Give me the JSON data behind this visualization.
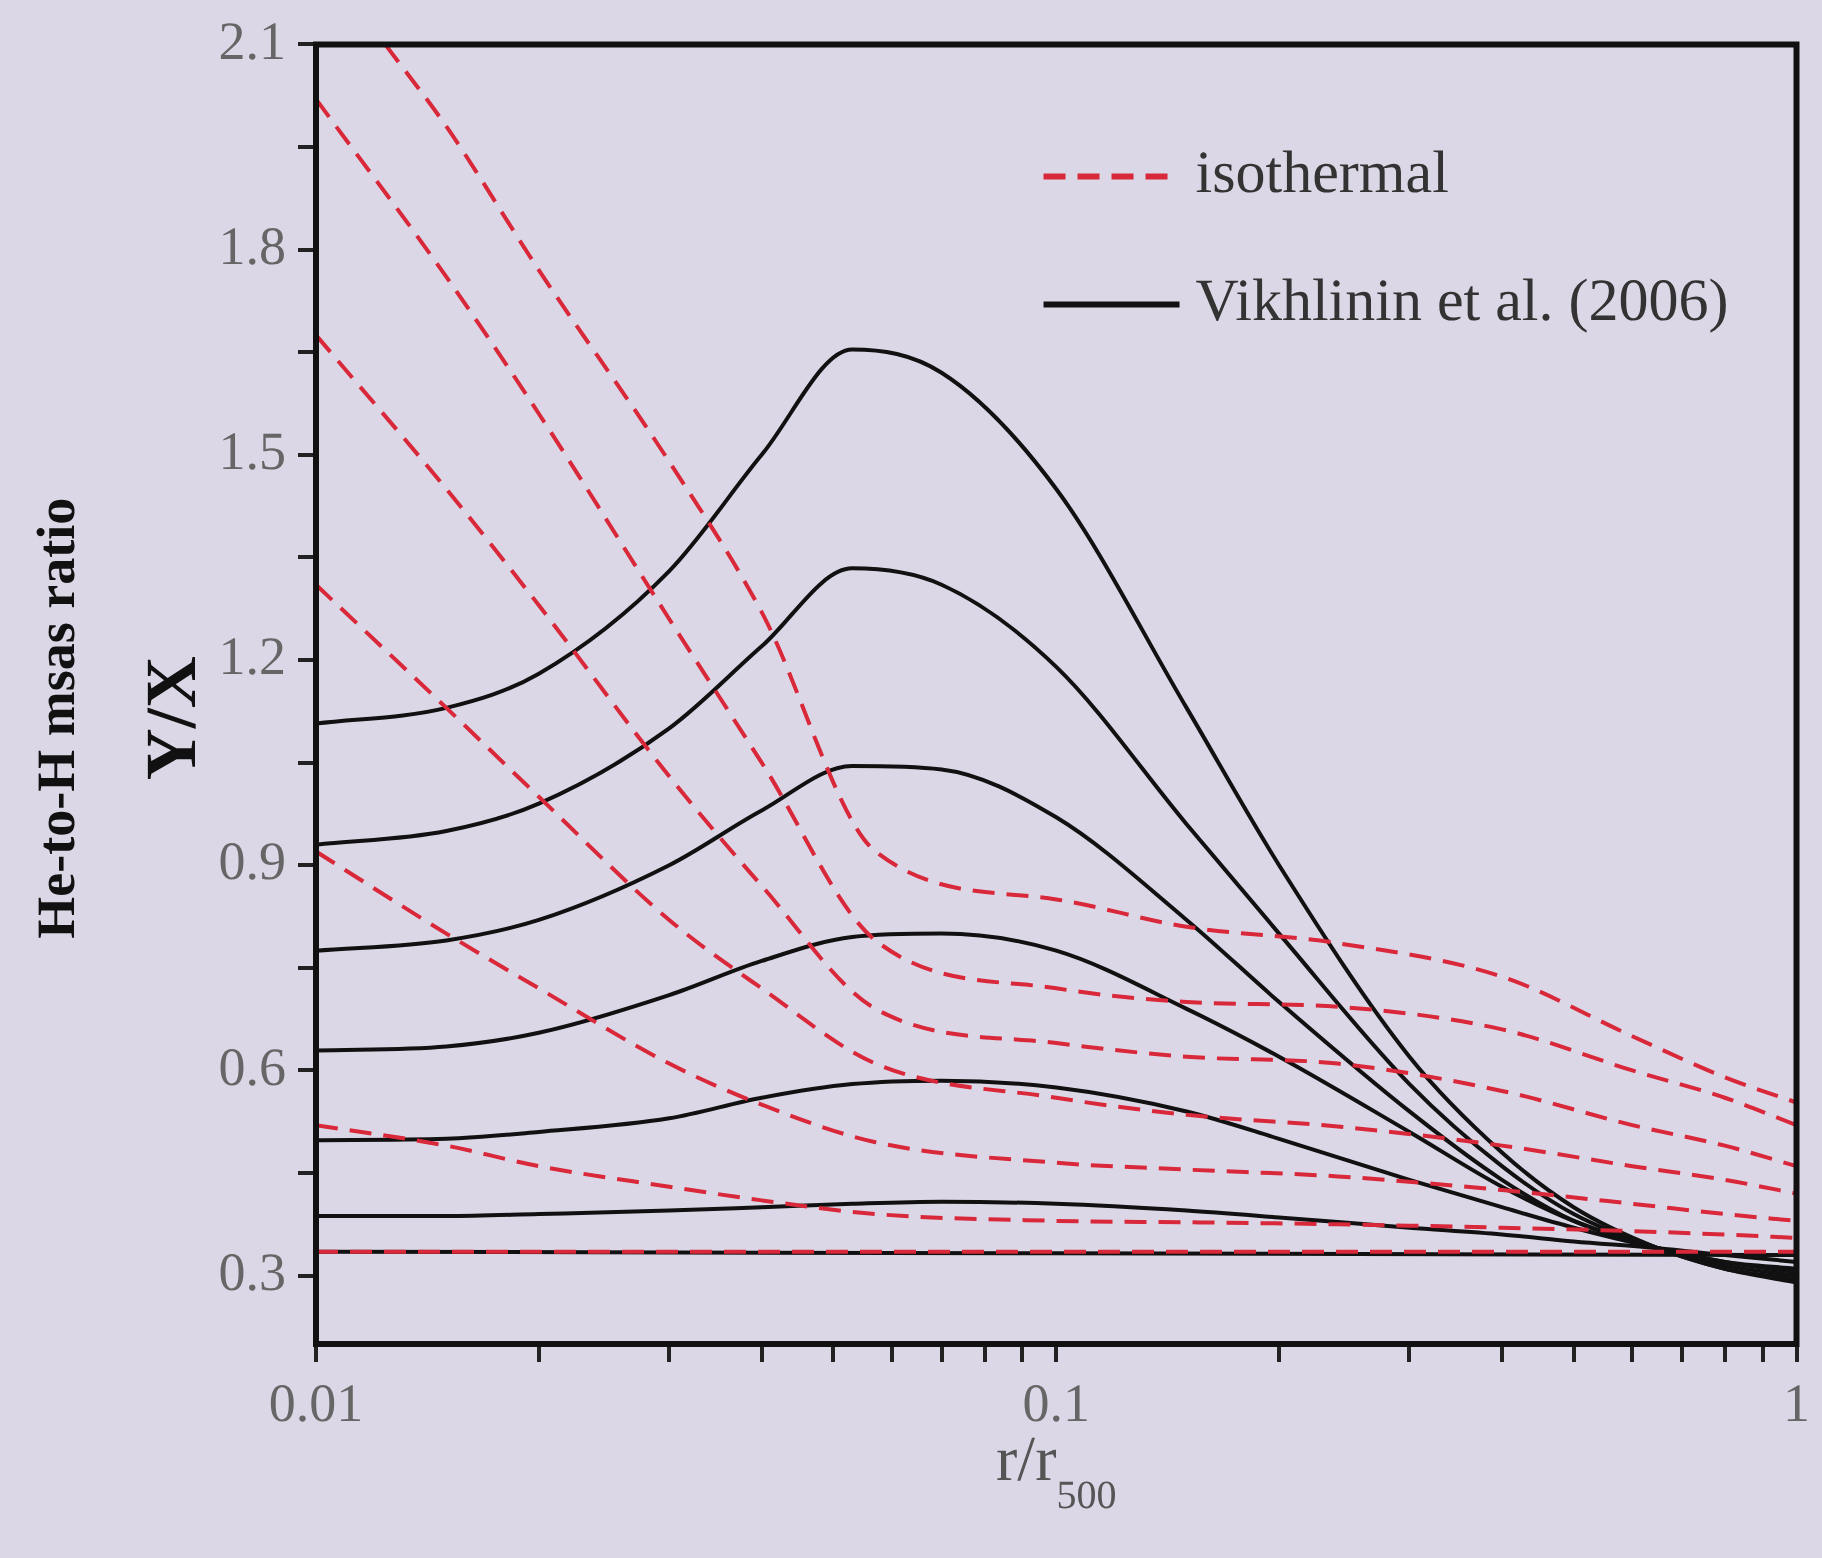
{
  "chart_data": {
    "type": "line",
    "xlabel": "r/r$_{500}$",
    "ylabel": "He-to-H msas ratio\nY/X",
    "log": "x",
    "grid": false,
    "legend": "top right",
    "marker": "none",
    "xlim": [
      0.01,
      1
    ],
    "xticks": [
      0.01,
      {
        "value": 0.02,
        "label": null
      },
      {
        "value": 0.03,
        "label": null
      },
      {
        "value": 0.04,
        "label": null
      },
      {
        "value": 0.05,
        "label": null
      },
      {
        "value": 0.06,
        "label": null
      },
      {
        "value": 0.07,
        "label": null
      },
      {
        "value": 0.08,
        "label": null
      },
      {
        "value": 0.09,
        "label": null
      },
      0.1,
      {
        "value": 0.2,
        "label": null
      },
      {
        "value": 0.3,
        "label": null
      },
      {
        "value": 0.4,
        "label": null
      },
      {
        "value": 0.5,
        "label": null
      },
      {
        "value": 0.6,
        "label": null
      },
      {
        "value": 0.7,
        "label": null
      },
      {
        "value": 0.8,
        "label": null
      },
      {
        "value": 0.9,
        "label": null
      },
      1
    ],
    "ylim": [
      0.2,
      2.1
    ],
    "yticks": [
      0.3,
      {
        "value": 0.45,
        "label": null
      },
      0.6,
      {
        "value": 0.75,
        "label": null
      },
      0.9,
      {
        "value": 1.05,
        "label": null
      },
      1.2,
      {
        "value": 1.35,
        "label": null
      },
      1.5,
      {
        "value": 1.65,
        "label": null
      },
      1.8,
      {
        "value": 1.95,
        "label": null
      },
      2.1
    ],
    "series": [
      {
        "name": "isothermal",
        "color": "#d8283a",
        "line_style": "dashed",
        "x": [
          0.0124,
          0.015,
          0.02,
          0.03,
          0.04,
          0.057,
          0.1,
          0.15,
          0.24,
          0.4,
          0.6,
          0.8,
          1
        ],
        "values": [
          2.1,
          1.98,
          1.77,
          1.49,
          1.27,
          0.92,
          0.85,
          0.81,
          0.786,
          0.737,
          0.65,
          0.59,
          0.553
        ]
      },
      {
        "color": "#d8283a",
        "line_style": "dashed",
        "x": [
          0.01,
          0.015,
          0.02,
          0.03,
          0.04,
          0.057,
          0.1,
          0.15,
          0.24,
          0.4,
          0.6,
          0.8,
          1
        ],
        "values": [
          2.02,
          1.76,
          1.56,
          1.26,
          1.05,
          0.79,
          0.72,
          0.7,
          0.693,
          0.66,
          0.6,
          0.56,
          0.52
        ]
      },
      {
        "color": "#d8283a",
        "line_style": "dashed",
        "x": [
          0.01,
          0.015,
          0.02,
          0.03,
          0.04,
          0.057,
          0.1,
          0.15,
          0.24,
          0.4,
          0.6,
          0.8,
          1
        ],
        "values": [
          1.675,
          1.45,
          1.28,
          1.03,
          0.87,
          0.69,
          0.64,
          0.62,
          0.61,
          0.57,
          0.52,
          0.49,
          0.46
        ]
      },
      {
        "color": "#d8283a",
        "line_style": "dashed",
        "x": [
          0.01,
          0.015,
          0.02,
          0.03,
          0.04,
          0.057,
          0.1,
          0.15,
          0.24,
          0.4,
          0.6,
          0.8,
          1
        ],
        "values": [
          1.31,
          1.13,
          1.0,
          0.82,
          0.72,
          0.61,
          0.56,
          0.535,
          0.518,
          0.49,
          0.46,
          0.44,
          0.42
        ]
      },
      {
        "color": "#d8283a",
        "line_style": "dashed",
        "x": [
          0.01,
          0.015,
          0.02,
          0.03,
          0.04,
          0.057,
          0.1,
          0.15,
          0.24,
          0.4,
          0.6,
          0.8,
          1
        ],
        "values": [
          0.92,
          0.8,
          0.72,
          0.61,
          0.55,
          0.495,
          0.465,
          0.455,
          0.445,
          0.425,
          0.405,
          0.39,
          0.38
        ]
      },
      {
        "color": "#d8283a",
        "line_style": "dashed",
        "x": [
          0.01,
          0.015,
          0.02,
          0.03,
          0.04,
          0.057,
          0.1,
          0.15,
          0.24,
          0.4,
          0.6,
          0.8,
          1
        ],
        "values": [
          0.52,
          0.49,
          0.46,
          0.43,
          0.41,
          0.39,
          0.38,
          0.378,
          0.375,
          0.37,
          0.365,
          0.36,
          0.355
        ]
      },
      {
        "color": "#d8283a",
        "line_style": "dashed",
        "x": [
          0.01,
          1
        ],
        "values": [
          0.335,
          0.335
        ]
      },
      {
        "name": "Vikhlinin et al. (2006)",
        "color": "#111111",
        "line_style": "solid",
        "x": [
          0.01,
          0.015,
          0.02,
          0.03,
          0.04,
          0.053,
          0.07,
          0.1,
          0.15,
          0.2,
          0.3,
          0.4,
          0.5,
          0.65,
          0.8,
          1
        ],
        "values": [
          1.107,
          1.13,
          1.18,
          1.33,
          1.5,
          1.654,
          1.62,
          1.45,
          1.13,
          0.9,
          0.62,
          0.48,
          0.4,
          0.34,
          0.31,
          0.29
        ]
      },
      {
        "color": "#111111",
        "line_style": "solid",
        "x": [
          0.01,
          0.015,
          0.02,
          0.03,
          0.04,
          0.053,
          0.07,
          0.1,
          0.15,
          0.2,
          0.3,
          0.4,
          0.5,
          0.65,
          0.8,
          1
        ],
        "values": [
          0.93,
          0.95,
          0.99,
          1.1,
          1.22,
          1.334,
          1.31,
          1.19,
          0.96,
          0.8,
          0.58,
          0.46,
          0.39,
          0.34,
          0.31,
          0.295
        ]
      },
      {
        "color": "#111111",
        "line_style": "solid",
        "x": [
          0.01,
          0.015,
          0.02,
          0.03,
          0.04,
          0.053,
          0.07,
          0.1,
          0.15,
          0.2,
          0.3,
          0.4,
          0.5,
          0.65,
          0.8,
          1
        ],
        "values": [
          0.775,
          0.79,
          0.82,
          0.9,
          0.98,
          1.045,
          1.04,
          0.97,
          0.82,
          0.7,
          0.54,
          0.44,
          0.38,
          0.34,
          0.315,
          0.3
        ]
      },
      {
        "color": "#111111",
        "line_style": "solid",
        "x": [
          0.01,
          0.015,
          0.02,
          0.03,
          0.04,
          0.053,
          0.07,
          0.1,
          0.15,
          0.2,
          0.3,
          0.4,
          0.5,
          0.65,
          0.8,
          1
        ],
        "values": [
          0.629,
          0.635,
          0.655,
          0.71,
          0.76,
          0.795,
          0.8,
          0.775,
          0.69,
          0.62,
          0.51,
          0.43,
          0.38,
          0.34,
          0.32,
          0.305
        ]
      },
      {
        "color": "#111111",
        "line_style": "solid",
        "x": [
          0.01,
          0.015,
          0.02,
          0.03,
          0.04,
          0.053,
          0.07,
          0.1,
          0.15,
          0.2,
          0.3,
          0.4,
          0.5,
          0.65,
          0.8,
          1
        ],
        "values": [
          0.498,
          0.5,
          0.51,
          0.53,
          0.56,
          0.58,
          0.585,
          0.575,
          0.54,
          0.5,
          0.44,
          0.4,
          0.37,
          0.34,
          0.32,
          0.31
        ]
      },
      {
        "color": "#111111",
        "line_style": "solid",
        "x": [
          0.01,
          0.015,
          0.02,
          0.03,
          0.04,
          0.053,
          0.07,
          0.1,
          0.15,
          0.2,
          0.3,
          0.4,
          0.5,
          0.65,
          0.8,
          1
        ],
        "values": [
          0.387,
          0.387,
          0.39,
          0.395,
          0.4,
          0.405,
          0.408,
          0.405,
          0.395,
          0.385,
          0.37,
          0.36,
          0.35,
          0.34,
          0.33,
          0.32
        ]
      },
      {
        "color": "#111111",
        "line_style": "solid",
        "x": [
          0.01,
          1
        ],
        "values": [
          0.335,
          0.33
        ]
      }
    ]
  }
}
